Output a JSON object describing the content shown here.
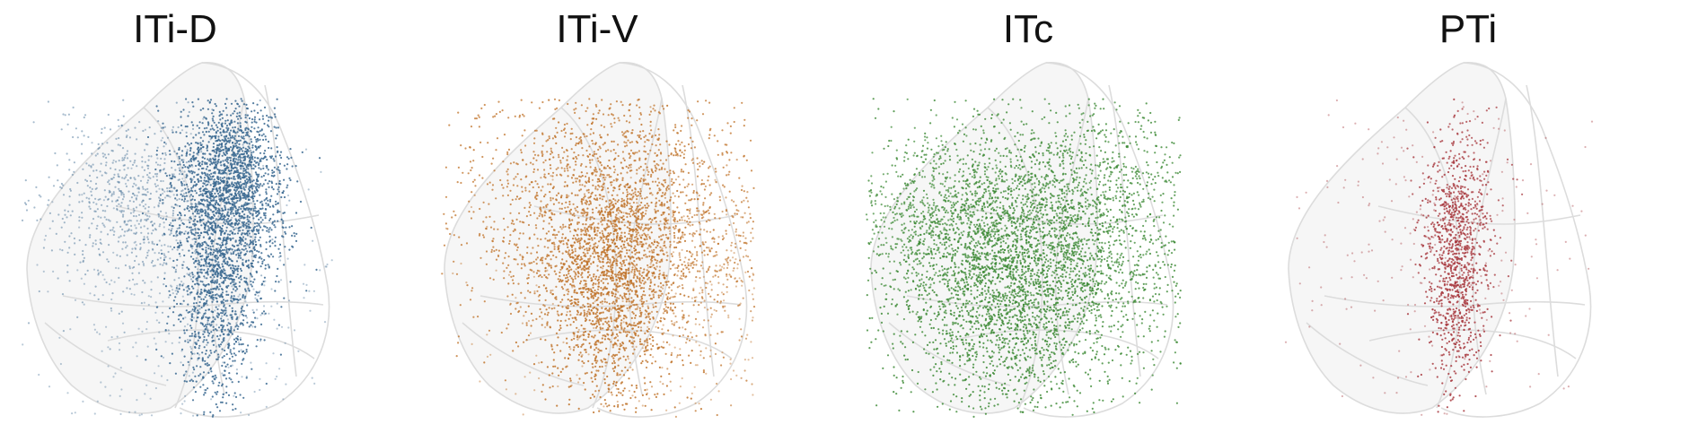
{
  "panels": [
    {
      "title": "ITi-D",
      "color": "#3a6890"
    },
    {
      "title": "ITi-V",
      "color": "#c0732a"
    },
    {
      "title": "ITc",
      "color": "#3c8a35"
    },
    {
      "title": "PTi",
      "color": "#a8393f"
    }
  ],
  "mesh_color": "#dcdcdc"
}
